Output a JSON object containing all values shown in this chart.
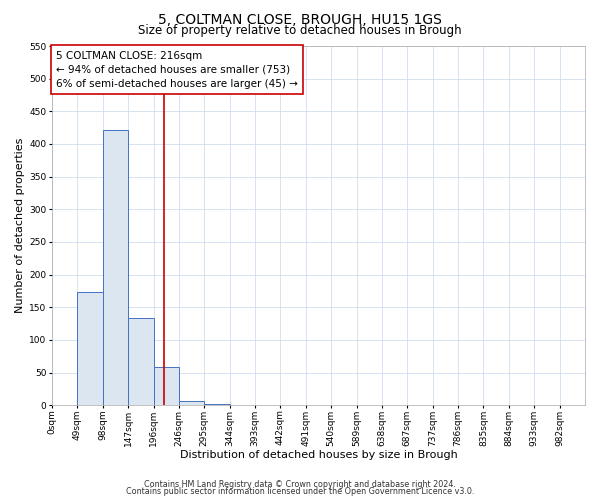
{
  "title": "5, COLTMAN CLOSE, BROUGH, HU15 1GS",
  "subtitle": "Size of property relative to detached houses in Brough",
  "xlabel": "Distribution of detached houses by size in Brough",
  "ylabel": "Number of detached properties",
  "bin_labels": [
    "0sqm",
    "49sqm",
    "98sqm",
    "147sqm",
    "196sqm",
    "246sqm",
    "295sqm",
    "344sqm",
    "393sqm",
    "442sqm",
    "491sqm",
    "540sqm",
    "589sqm",
    "638sqm",
    "687sqm",
    "737sqm",
    "786sqm",
    "835sqm",
    "884sqm",
    "933sqm",
    "982sqm"
  ],
  "bar_heights": [
    0,
    174,
    422,
    133,
    58,
    6,
    2,
    0,
    0,
    0,
    0,
    1,
    0,
    0,
    0,
    0,
    0,
    0,
    0,
    1,
    0
  ],
  "bar_color": "#dce6f1",
  "bar_edge_color": "#4472c4",
  "vline_x": 4.4,
  "vline_color": "#cc0000",
  "annotation_text": "5 COLTMAN CLOSE: 216sqm\n← 94% of detached houses are smaller (753)\n6% of semi-detached houses are larger (45) →",
  "annotation_box_color": "#ffffff",
  "annotation_box_edge": "#cc0000",
  "ylim": [
    0,
    550
  ],
  "yticks": [
    0,
    50,
    100,
    150,
    200,
    250,
    300,
    350,
    400,
    450,
    500,
    550
  ],
  "footer_line1": "Contains HM Land Registry data © Crown copyright and database right 2024.",
  "footer_line2": "Contains public sector information licensed under the Open Government Licence v3.0.",
  "title_fontsize": 10,
  "subtitle_fontsize": 8.5,
  "axis_label_fontsize": 8,
  "tick_fontsize": 6.5,
  "annotation_fontsize": 7.5,
  "footer_fontsize": 5.8,
  "background_color": "#ffffff",
  "grid_color": "#c8d8ec"
}
